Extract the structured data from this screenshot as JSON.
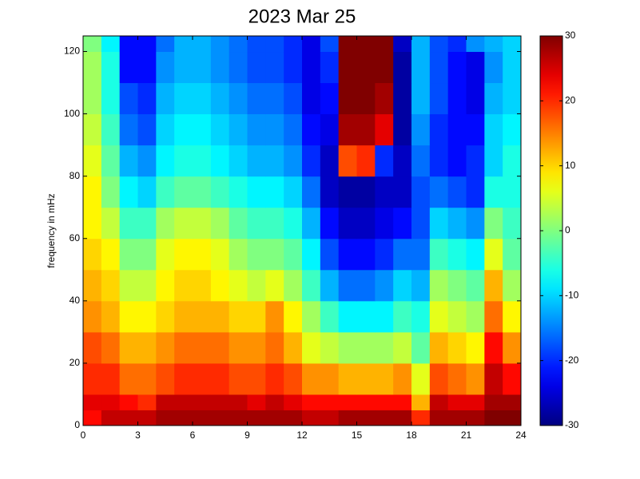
{
  "chart_data": {
    "type": "heatmap",
    "title": "2023 Mar 25",
    "y_label": "frequency in mHz",
    "colormap": "jet",
    "xbins": [
      0,
      1,
      2,
      3,
      4,
      5,
      6,
      7,
      8,
      9,
      10,
      11,
      12,
      13,
      14,
      15,
      16,
      17,
      18,
      19,
      20,
      21,
      22,
      23,
      24
    ],
    "ybins": [
      0,
      5,
      10,
      20,
      30,
      40,
      50,
      60,
      70,
      80,
      90,
      100,
      110,
      120,
      125
    ],
    "z": [
      [
        22,
        26,
        26,
        26,
        28,
        28,
        28,
        28,
        28,
        28,
        28,
        28,
        26,
        26,
        28,
        28,
        28,
        28,
        20,
        28,
        28,
        28,
        30,
        30
      ],
      [
        24,
        24,
        22,
        20,
        26,
        26,
        26,
        26,
        26,
        24,
        26,
        24,
        22,
        22,
        22,
        22,
        22,
        22,
        12,
        26,
        24,
        24,
        28,
        28
      ],
      [
        20,
        20,
        16,
        16,
        18,
        20,
        20,
        20,
        18,
        18,
        20,
        18,
        14,
        14,
        12,
        12,
        12,
        14,
        6,
        18,
        16,
        14,
        26,
        22
      ],
      [
        18,
        16,
        12,
        12,
        14,
        16,
        16,
        16,
        14,
        14,
        16,
        12,
        6,
        4,
        2,
        2,
        2,
        4,
        -2,
        12,
        10,
        8,
        22,
        14
      ],
      [
        14,
        12,
        8,
        8,
        10,
        12,
        12,
        12,
        10,
        10,
        14,
        8,
        2,
        -4,
        -8,
        -8,
        -8,
        -4,
        -6,
        6,
        4,
        2,
        16,
        8
      ],
      [
        12,
        10,
        4,
        4,
        8,
        10,
        10,
        8,
        6,
        4,
        6,
        2,
        -4,
        -12,
        -16,
        -16,
        -14,
        -10,
        -12,
        2,
        0,
        -2,
        12,
        2
      ],
      [
        10,
        8,
        0,
        0,
        6,
        8,
        8,
        6,
        2,
        0,
        0,
        -2,
        -8,
        -18,
        -22,
        -22,
        -20,
        -16,
        -16,
        -4,
        -6,
        -8,
        6,
        -2
      ],
      [
        8,
        4,
        -4,
        -4,
        2,
        4,
        4,
        2,
        -2,
        -4,
        -4,
        -6,
        -12,
        -22,
        -26,
        -26,
        -24,
        -22,
        -18,
        -10,
        -12,
        -14,
        0,
        -4
      ],
      [
        8,
        0,
        -8,
        -10,
        -4,
        -2,
        -2,
        -4,
        -6,
        -8,
        -8,
        -10,
        -16,
        -26,
        -28,
        -28,
        -26,
        -26,
        -18,
        -16,
        -18,
        -20,
        -6,
        -6
      ],
      [
        6,
        -2,
        -12,
        -14,
        -8,
        -6,
        -6,
        -8,
        -10,
        -12,
        -12,
        -14,
        -20,
        -26,
        18,
        20,
        -20,
        -26,
        -16,
        -20,
        -22,
        -20,
        -10,
        -6
      ],
      [
        4,
        -4,
        -16,
        -18,
        -10,
        -8,
        -8,
        -10,
        -12,
        -14,
        -14,
        -16,
        -22,
        -24,
        28,
        28,
        24,
        -28,
        -14,
        -20,
        -22,
        -22,
        -10,
        -8
      ],
      [
        2,
        -6,
        -18,
        -20,
        -12,
        -10,
        -10,
        -12,
        -14,
        -16,
        -16,
        -18,
        -24,
        -22,
        30,
        30,
        28,
        -28,
        -12,
        -18,
        -22,
        -24,
        -12,
        -10
      ],
      [
        2,
        -6,
        -22,
        -22,
        -14,
        -12,
        -12,
        -14,
        -16,
        -18,
        -18,
        -20,
        -24,
        -20,
        30,
        30,
        30,
        -28,
        -12,
        -18,
        -22,
        -24,
        -14,
        -10
      ],
      [
        0,
        -8,
        -22,
        -22,
        -16,
        -12,
        -12,
        -14,
        -16,
        -18,
        -18,
        -20,
        -24,
        -18,
        30,
        30,
        30,
        -26,
        -12,
        -18,
        -20,
        -14,
        -12,
        -10
      ]
    ],
    "xlim": [
      0,
      24
    ],
    "xticks": [
      0,
      3,
      6,
      9,
      12,
      15,
      18,
      21,
      24
    ],
    "ylim": [
      0,
      125
    ],
    "yticks": [
      0,
      20,
      40,
      60,
      80,
      100,
      120
    ],
    "clim": [
      -30,
      30
    ],
    "cticks": [
      -30,
      -20,
      -10,
      0,
      10,
      20,
      30
    ]
  }
}
